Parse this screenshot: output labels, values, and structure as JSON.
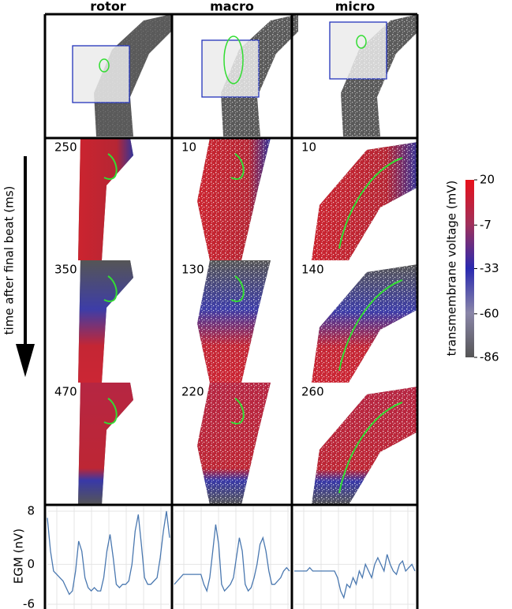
{
  "columns": [
    "rotor",
    "macro",
    "micro"
  ],
  "time_axis_label": "time after final beat (ms)",
  "time_labels": [
    [
      250,
      10,
      10
    ],
    [
      350,
      130,
      140
    ],
    [
      470,
      220,
      260
    ]
  ],
  "colorbar": {
    "label": "transmembrane voltage (mV)",
    "lim": [
      -86,
      20
    ],
    "ticks": [
      20,
      -7,
      -33,
      -60,
      -86
    ]
  },
  "chart_data": [
    {
      "type": "line",
      "ylabel": "EGM (nV)",
      "ylim": [
        -6,
        8
      ],
      "yticks": [
        8,
        0,
        -6
      ],
      "grid": true,
      "color": "#4a78b0",
      "values": [
        7,
        2,
        -1,
        -1.5,
        -2,
        -2.5,
        -3.5,
        -4.5,
        -4,
        -1,
        3.5,
        2,
        -2,
        -3.5,
        -4,
        -3.5,
        -4,
        -4,
        -2,
        2,
        4.5,
        1,
        -3,
        -3.5,
        -3,
        -3,
        -2.5,
        0,
        5,
        7.5,
        3,
        -2,
        -3,
        -3,
        -2.5,
        -2,
        1,
        5,
        8,
        4
      ]
    },
    {
      "type": "line",
      "ylim": [
        -6,
        8
      ],
      "grid": true,
      "color": "#4a78b0",
      "values": [
        -3,
        -2.5,
        -2,
        -1.5,
        -1.5,
        -1.5,
        -1.5,
        -1.5,
        -1.5,
        -1.5,
        -3,
        -4,
        -2,
        2,
        6,
        3,
        -3,
        -4,
        -3.5,
        -3,
        -2,
        1,
        4,
        2,
        -3,
        -4,
        -3.5,
        -2,
        0,
        3,
        4,
        2,
        -1,
        -3,
        -3,
        -2.5,
        -2,
        -1,
        -0.5,
        -1
      ]
    },
    {
      "type": "line",
      "ylim": [
        -6,
        8
      ],
      "grid": true,
      "color": "#4a78b0",
      "values": [
        -1,
        -1,
        -1,
        -1,
        -1,
        -0.5,
        -1,
        -1,
        -1,
        -1,
        -1,
        -1,
        -1,
        -1,
        -2,
        -4,
        -5,
        -3,
        -3.5,
        -2,
        -3,
        -1,
        -2,
        0,
        -1,
        -2,
        0,
        1,
        0,
        -1,
        1.5,
        0,
        -1,
        -1.5,
        0,
        0.5,
        -1,
        -0.5,
        0,
        -1
      ]
    }
  ]
}
